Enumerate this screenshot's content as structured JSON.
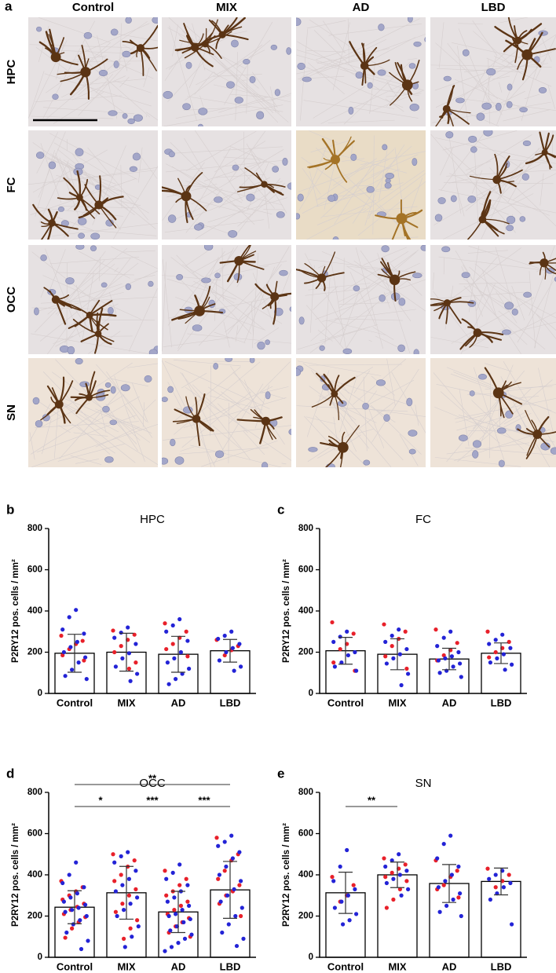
{
  "micrographs": {
    "panel": "a",
    "columns": [
      "Control",
      "MIX",
      "AD",
      "LBD"
    ],
    "rows": [
      "HPC",
      "FC",
      "OCC",
      "SN"
    ]
  },
  "chart_data": [
    {
      "type": "bar",
      "panel": "b",
      "title": "HPC",
      "ylabel": "P2RY12 pos. cells / mm²",
      "categories": [
        "Control",
        "MIX",
        "AD",
        "LBD"
      ],
      "values": [
        195,
        200,
        190,
        207
      ],
      "errors": [
        92,
        92,
        87,
        55
      ],
      "color": "#ffffff",
      "ylim": [
        0,
        800
      ],
      "yticks": [
        0,
        200,
        400,
        600,
        800
      ],
      "dots": [
        {
          "color": "#e8202a",
          "values": [
            [
              280,
              255,
              240,
              215,
              185,
              160
            ],
            [
              305,
              285,
              260,
              230,
              200,
              150,
              120
            ],
            [
              340,
              300,
              270,
              240,
              215,
              180
            ],
            [
              260,
              230,
              210,
              185
            ]
          ]
        },
        {
          "color": "#2323d6",
          "values": [
            [
              405,
              370,
              310,
              290,
              250,
              225,
              200,
              175,
              150,
              115,
              85,
              70
            ],
            [
              320,
              295,
              270,
              240,
              195,
              170,
              130,
              95,
              60
            ],
            [
              360,
              330,
              300,
              255,
              200,
              170,
              150,
              120,
              95,
              70,
              45
            ],
            [
              300,
              280,
              265,
              240,
              220,
              200,
              160,
              130,
              110
            ]
          ]
        }
      ],
      "significance": []
    },
    {
      "type": "bar",
      "panel": "c",
      "title": "FC",
      "ylabel": "P2RY12 pos. cells / mm²",
      "categories": [
        "Control",
        "MIX",
        "AD",
        "LBD"
      ],
      "values": [
        207,
        190,
        167,
        195
      ],
      "errors": [
        65,
        75,
        52,
        50
      ],
      "color": "#ffffff",
      "ylim": [
        0,
        800
      ],
      "yticks": [
        0,
        200,
        400,
        600,
        800
      ],
      "dots": [
        {
          "color": "#e8202a",
          "values": [
            [
              345,
              290,
              240,
              215,
              150,
              110
            ],
            [
              335,
              300,
              265,
              230,
              180,
              120
            ],
            [
              310,
              245,
              210,
              185,
              160
            ],
            [
              300,
              250,
              220,
              200,
              175
            ]
          ]
        },
        {
          "color": "#2323d6",
          "values": [
            [
              300,
              275,
              250,
              200,
              185,
              150,
              130,
              110
            ],
            [
              310,
              280,
              250,
              215,
              190,
              170,
              145,
              95,
              40
            ],
            [
              300,
              270,
              230,
              200,
              180,
              170,
              160,
              145,
              130,
              110,
              100,
              80
            ],
            [
              285,
              260,
              240,
              220,
              190,
              170,
              150,
              140,
              115
            ]
          ]
        }
      ],
      "significance": []
    },
    {
      "type": "bar",
      "panel": "d",
      "title": "OCC",
      "ylabel": "P2RY12 pos. cells / mm²",
      "categories": [
        "Control",
        "MIX",
        "AD",
        "LBD"
      ],
      "values": [
        243,
        313,
        220,
        327
      ],
      "errors": [
        80,
        128,
        100,
        138
      ],
      "color": "#ffffff",
      "ylim": [
        0,
        800
      ],
      "yticks": [
        0,
        200,
        400,
        600,
        800
      ],
      "dots": [
        {
          "color": "#e8202a",
          "values": [
            [
              370,
              340,
              320,
              300,
              280,
              260,
              245,
              230,
              210,
              195,
              170,
              140,
              95
            ],
            [
              500,
              470,
              440,
              400,
              370,
              330,
              300,
              260,
              220,
              180,
              140,
              90
            ],
            [
              420,
              380,
              350,
              320,
              300,
              270,
              250,
              230,
              210,
              190,
              170,
              150,
              120,
              100
            ],
            [
              580,
              500,
              470,
              420,
              380,
              350,
              320,
              300,
              260,
              200
            ]
          ]
        },
        {
          "color": "#2323d6",
          "values": [
            [
              460,
              400,
              360,
              340,
              310,
              290,
              270,
              255,
              240,
              230,
              220,
              200,
              180,
              160,
              120,
              80,
              40
            ],
            [
              510,
              490,
              460,
              420,
              380,
              350,
              320,
              290,
              260,
              230,
              200,
              150,
              100,
              50
            ],
            [
              450,
              410,
              380,
              350,
              320,
              290,
              270,
              250,
              230,
              210,
              200,
              185,
              170,
              150,
              130,
              110,
              90,
              70,
              50,
              30
            ],
            [
              590,
              560,
              540,
              510,
              480,
              440,
              400,
              370,
              330,
              300,
              270,
              240,
              200,
              160,
              120,
              90,
              55
            ]
          ]
        }
      ],
      "significance": [
        {
          "from": 0,
          "to": 3,
          "label": "**"
        },
        {
          "from": 0,
          "to": 1,
          "label": "*"
        },
        {
          "from": 1,
          "to": 2,
          "label": "***"
        },
        {
          "from": 2,
          "to": 3,
          "label": "***"
        }
      ]
    },
    {
      "type": "bar",
      "panel": "e",
      "title": "SN",
      "ylabel": "P2RY12 pos. cells / mm²",
      "categories": [
        "Control",
        "MIX",
        "AD",
        "LBD"
      ],
      "values": [
        313,
        400,
        358,
        368
      ],
      "errors": [
        100,
        62,
        92,
        65
      ],
      "color": "#ffffff",
      "ylim": [
        0,
        800
      ],
      "yticks": [
        0,
        200,
        400,
        600,
        800
      ],
      "dots": [
        {
          "color": "#e8202a",
          "values": [
            [
              390,
              350,
              300,
              270
            ],
            [
              480,
              450,
              430,
              410,
              390,
              370,
              330,
              280,
              240
            ],
            [
              470,
              420,
              390,
              350,
              330,
              290
            ],
            [
              430,
              400,
              370,
              340
            ]
          ]
        },
        {
          "color": "#2323d6",
          "values": [
            [
              520,
              440,
              370,
              330,
              300,
              270,
              240,
              210,
              180,
              160
            ],
            [
              500,
              470,
              440,
              420,
              400,
              380,
              360,
              330,
              300
            ],
            [
              590,
              550,
              480,
              440,
              400,
              370,
              340,
              310,
              280,
              250,
              220,
              200
            ],
            [
              420,
              400,
              380,
              360,
              340,
              310,
              280,
              160
            ]
          ]
        }
      ],
      "significance": [
        {
          "from": 0,
          "to": 1,
          "label": "**"
        }
      ]
    }
  ]
}
